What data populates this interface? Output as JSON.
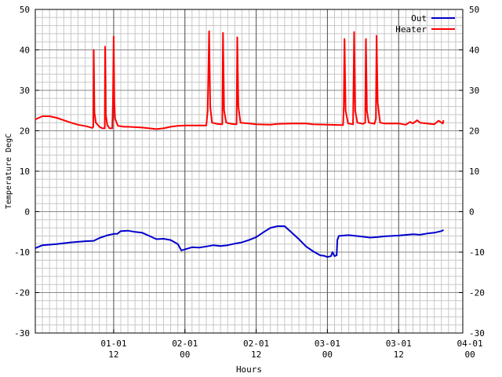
{
  "chart_data": {
    "type": "line",
    "title": "",
    "xlabel": "Hours",
    "ylabel": "Temperature DegC",
    "x_unit": "hours",
    "xlim": [
      -11,
      49
    ],
    "ylim": [
      -30,
      50
    ],
    "y_ticks": [
      -30,
      -20,
      -10,
      0,
      10,
      20,
      30,
      40,
      50
    ],
    "x_ticks": [
      {
        "x": 0,
        "top": "01-01",
        "bottom": "12"
      },
      {
        "x": 10,
        "top": "02-01",
        "bottom": "00"
      },
      {
        "x": 20,
        "top": "02-01",
        "bottom": "12"
      },
      {
        "x": 30,
        "top": "03-01",
        "bottom": "00"
      },
      {
        "x": 40,
        "top": "03-01",
        "bottom": "12"
      },
      {
        "x": 50,
        "top": "04-01",
        "bottom": "00"
      }
    ],
    "grid": true,
    "legend_position": "top-right",
    "series": [
      {
        "name": "Out",
        "color": "#0000cc",
        "points": [
          [
            -11.0,
            -9.0
          ],
          [
            -10.0,
            -8.3
          ],
          [
            -8.0,
            -8.0
          ],
          [
            -6.0,
            -7.6
          ],
          [
            -4.0,
            -7.3
          ],
          [
            -2.8,
            -7.2
          ],
          [
            -2.0,
            -6.5
          ],
          [
            -1.0,
            -5.9
          ],
          [
            0.0,
            -5.5
          ],
          [
            0.5,
            -5.5
          ],
          [
            1.0,
            -4.8
          ],
          [
            2.0,
            -4.7
          ],
          [
            3.0,
            -5.0
          ],
          [
            4.0,
            -5.2
          ],
          [
            5.0,
            -6.0
          ],
          [
            6.0,
            -6.8
          ],
          [
            7.0,
            -6.7
          ],
          [
            8.0,
            -7.0
          ],
          [
            9.0,
            -8.0
          ],
          [
            9.5,
            -9.6
          ],
          [
            10.0,
            -9.3
          ],
          [
            11.0,
            -8.8
          ],
          [
            12.0,
            -8.9
          ],
          [
            13.0,
            -8.6
          ],
          [
            14.0,
            -8.3
          ],
          [
            15.0,
            -8.5
          ],
          [
            16.0,
            -8.3
          ],
          [
            17.0,
            -7.9
          ],
          [
            18.0,
            -7.6
          ],
          [
            19.0,
            -7.0
          ],
          [
            20.0,
            -6.3
          ],
          [
            21.0,
            -5.1
          ],
          [
            22.0,
            -4.0
          ],
          [
            23.0,
            -3.6
          ],
          [
            24.0,
            -3.6
          ],
          [
            25.0,
            -5.2
          ],
          [
            26.0,
            -6.8
          ],
          [
            27.0,
            -8.6
          ],
          [
            28.0,
            -9.8
          ],
          [
            29.0,
            -10.8
          ],
          [
            29.5,
            -10.9
          ],
          [
            30.0,
            -11.2
          ],
          [
            30.5,
            -11.0
          ],
          [
            30.7,
            -10.0
          ],
          [
            31.0,
            -11.0
          ],
          [
            31.3,
            -10.8
          ],
          [
            31.4,
            -7.0
          ],
          [
            31.6,
            -6.0
          ],
          [
            33.0,
            -5.8
          ],
          [
            34.0,
            -6.0
          ],
          [
            35.0,
            -6.2
          ],
          [
            36.0,
            -6.4
          ],
          [
            37.0,
            -6.3
          ],
          [
            38.0,
            -6.1
          ],
          [
            40.0,
            -5.9
          ],
          [
            42.0,
            -5.6
          ],
          [
            43.0,
            -5.7
          ],
          [
            44.0,
            -5.4
          ],
          [
            45.0,
            -5.2
          ],
          [
            46.0,
            -4.8
          ],
          [
            46.3,
            -4.5
          ]
        ]
      },
      {
        "name": "Heater",
        "color": "#ff0000",
        "points": [
          [
            -11.0,
            22.8
          ],
          [
            -10.5,
            23.2
          ],
          [
            -10.0,
            23.6
          ],
          [
            -9.0,
            23.6
          ],
          [
            -8.0,
            23.2
          ],
          [
            -7.0,
            22.6
          ],
          [
            -6.0,
            22.0
          ],
          [
            -5.0,
            21.5
          ],
          [
            -3.8,
            21.1
          ],
          [
            -3.0,
            20.7
          ],
          [
            -2.85,
            21.0
          ],
          [
            -2.8,
            40.0
          ],
          [
            -2.7,
            24.5
          ],
          [
            -2.5,
            22.0
          ],
          [
            -2.0,
            21.0
          ],
          [
            -1.6,
            20.6
          ],
          [
            -1.25,
            20.6
          ],
          [
            -1.2,
            40.8
          ],
          [
            -1.1,
            24.0
          ],
          [
            -0.9,
            21.5
          ],
          [
            -0.6,
            20.6
          ],
          [
            -0.2,
            20.6
          ],
          [
            -0.1,
            27.0
          ],
          [
            0.0,
            43.3
          ],
          [
            0.1,
            27.0
          ],
          [
            0.2,
            23.0
          ],
          [
            0.6,
            21.2
          ],
          [
            1.5,
            21.0
          ],
          [
            2.0,
            21.0
          ],
          [
            3.0,
            20.9
          ],
          [
            4.0,
            20.8
          ],
          [
            5.0,
            20.6
          ],
          [
            6.0,
            20.4
          ],
          [
            7.0,
            20.6
          ],
          [
            8.0,
            21.0
          ],
          [
            9.0,
            21.2
          ],
          [
            10.0,
            21.3
          ],
          [
            12.0,
            21.3
          ],
          [
            13.0,
            21.3
          ],
          [
            13.2,
            25.0
          ],
          [
            13.4,
            44.6
          ],
          [
            13.55,
            26.0
          ],
          [
            13.8,
            22.0
          ],
          [
            14.5,
            21.7
          ],
          [
            15.25,
            21.6
          ],
          [
            15.35,
            44.2
          ],
          [
            15.5,
            25.0
          ],
          [
            15.8,
            22.0
          ],
          [
            16.5,
            21.7
          ],
          [
            17.25,
            21.6
          ],
          [
            17.35,
            43.1
          ],
          [
            17.5,
            26.0
          ],
          [
            17.8,
            22.0
          ],
          [
            19.0,
            21.8
          ],
          [
            20.0,
            21.6
          ],
          [
            22.0,
            21.5
          ],
          [
            23.0,
            21.7
          ],
          [
            25.0,
            21.8
          ],
          [
            27.0,
            21.8
          ],
          [
            28.0,
            21.6
          ],
          [
            30.0,
            21.5
          ],
          [
            32.2,
            21.4
          ],
          [
            32.3,
            26.0
          ],
          [
            32.4,
            42.7
          ],
          [
            32.55,
            25.0
          ],
          [
            32.9,
            21.8
          ],
          [
            33.6,
            21.6
          ],
          [
            33.75,
            44.4
          ],
          [
            33.9,
            25.0
          ],
          [
            34.2,
            22.0
          ],
          [
            35.0,
            21.7
          ],
          [
            35.3,
            22.0
          ],
          [
            35.4,
            42.7
          ],
          [
            35.55,
            25.0
          ],
          [
            35.8,
            22.0
          ],
          [
            36.6,
            21.7
          ],
          [
            36.8,
            23.0
          ],
          [
            36.9,
            43.5
          ],
          [
            37.05,
            27.0
          ],
          [
            37.4,
            22.0
          ],
          [
            38.0,
            21.8
          ],
          [
            40.0,
            21.8
          ],
          [
            41.0,
            21.5
          ],
          [
            41.6,
            22.2
          ],
          [
            42.0,
            21.8
          ],
          [
            42.6,
            22.6
          ],
          [
            43.0,
            22.0
          ],
          [
            44.0,
            21.8
          ],
          [
            45.0,
            21.6
          ],
          [
            45.6,
            22.5
          ],
          [
            46.0,
            22.0
          ],
          [
            46.2,
            21.8
          ],
          [
            46.3,
            22.6
          ]
        ]
      }
    ]
  }
}
